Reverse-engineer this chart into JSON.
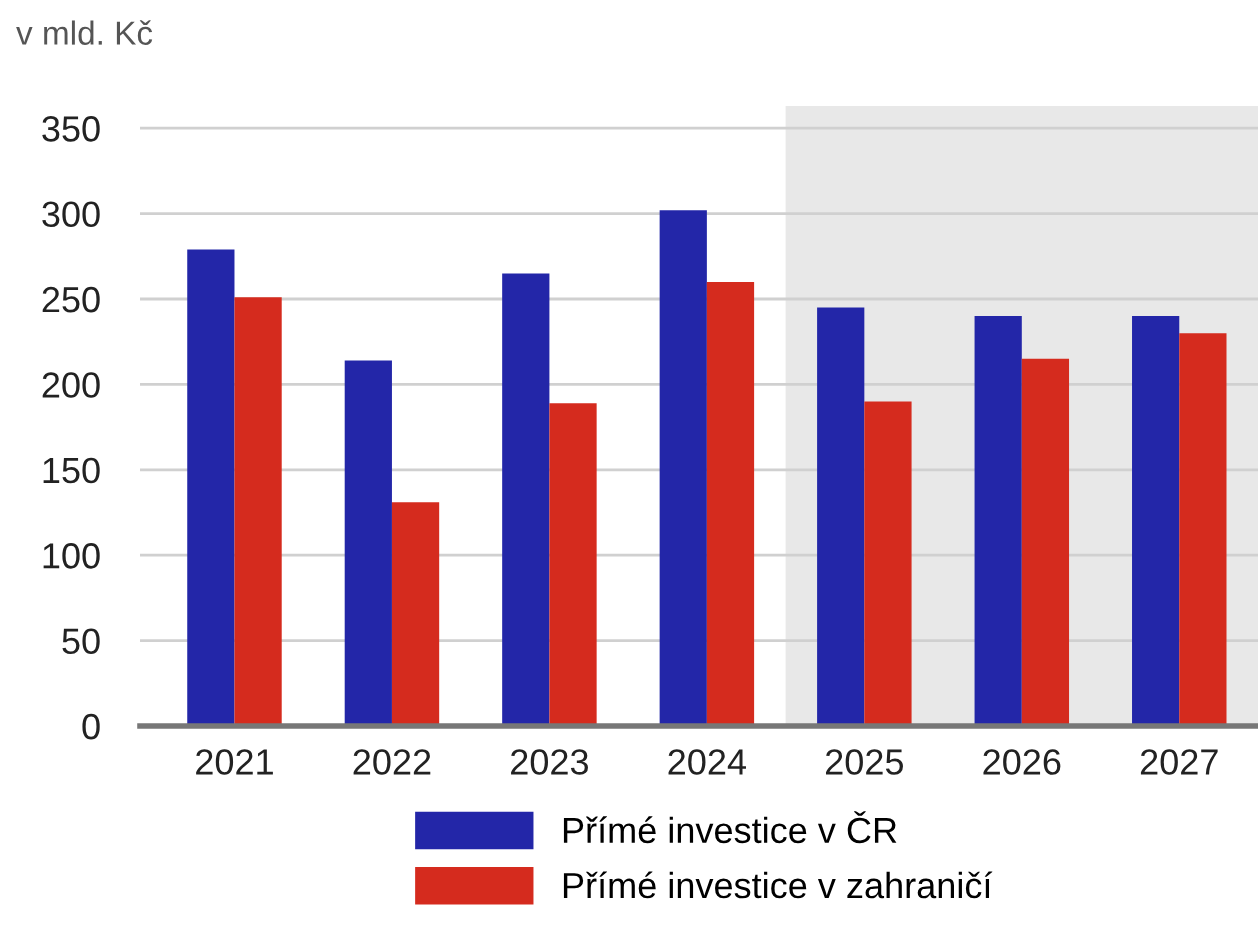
{
  "chart_data": {
    "type": "bar",
    "ylabel": "v mld. Kč",
    "categories": [
      "2021",
      "2022",
      "2023",
      "2024",
      "2025",
      "2026",
      "2027"
    ],
    "series": [
      {
        "name": "Přímé investice v ČR",
        "color": "#2326a8",
        "values": [
          279,
          214,
          265,
          302,
          245,
          240,
          240
        ]
      },
      {
        "name": "Přímé investice v zahraničí",
        "color": "#d52b1e",
        "values": [
          251,
          131,
          189,
          260,
          190,
          215,
          230
        ]
      }
    ],
    "ylim": [
      0,
      363
    ],
    "yticks": [
      0,
      50,
      100,
      150,
      200,
      250,
      300,
      350
    ],
    "bands": [
      {
        "axis": "x",
        "from": "2025",
        "to": "2027",
        "label": null,
        "color": "#e8e8e8"
      }
    ],
    "grid": "y",
    "legend": "bottom"
  }
}
